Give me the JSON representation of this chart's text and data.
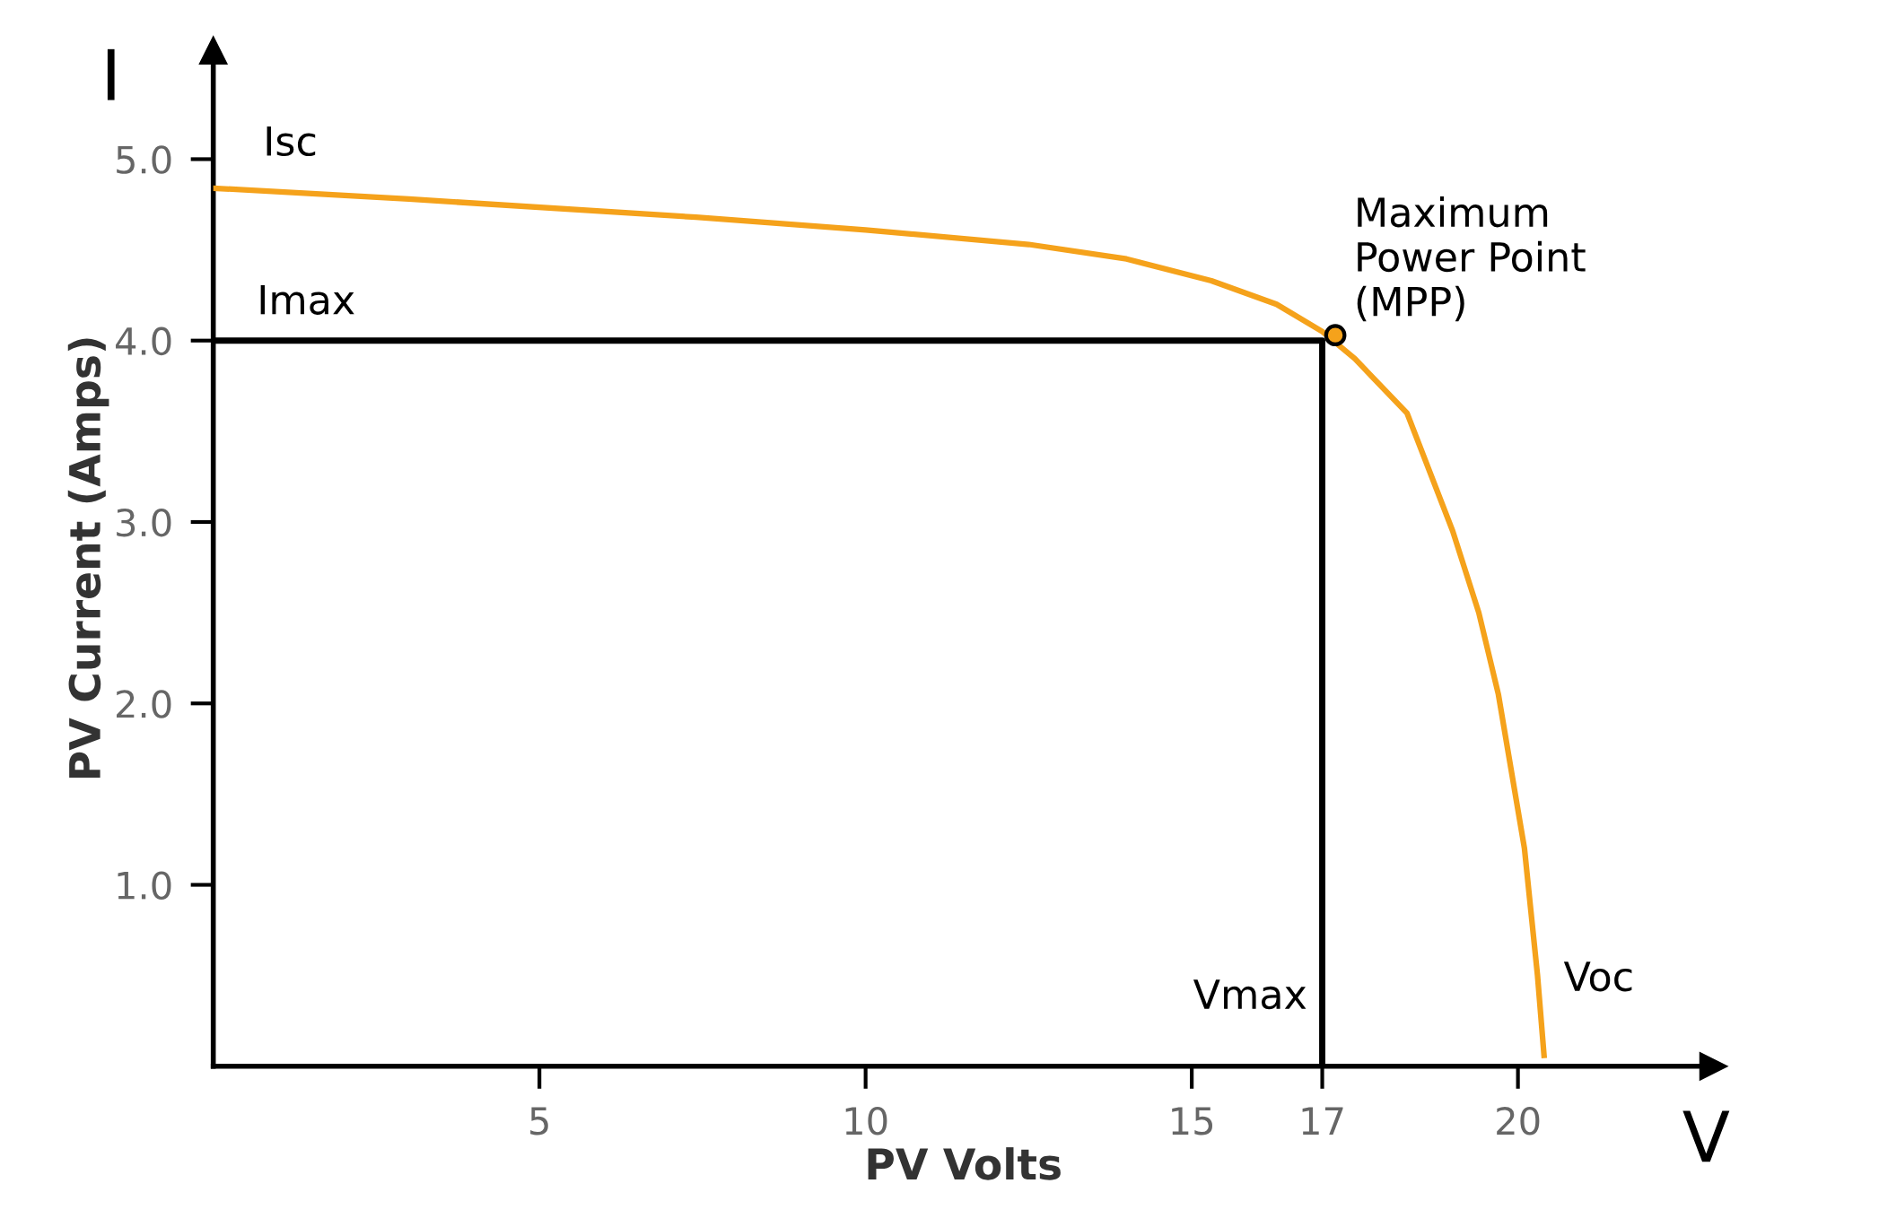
{
  "chart_data": {
    "type": "line",
    "xlabel": "PV Volts",
    "ylabel": "PV Current (Amps)",
    "xlim": [
      0,
      23
    ],
    "ylim": [
      0,
      5.6
    ],
    "xticks": [
      5,
      10,
      15,
      17,
      20
    ],
    "yticks": [
      {
        "value": 1,
        "label": "1.0"
      },
      {
        "value": 2,
        "label": "2.0"
      },
      {
        "value": 3,
        "label": "3.0"
      },
      {
        "value": 4,
        "label": "4.0"
      },
      {
        "value": 5,
        "label": "5.0"
      }
    ],
    "grid": false,
    "legend": false,
    "series": [
      {
        "color": "#f5a21b",
        "x": [
          0,
          3,
          7.4,
          10,
          12.5,
          14,
          15.3,
          16.3,
          17,
          17.5,
          18.3,
          19,
          19.4,
          19.7,
          20.1,
          20.3,
          20.4
        ],
        "values": [
          4.84,
          4.78,
          4.68,
          4.61,
          4.53,
          4.45,
          4.33,
          4.2,
          4.05,
          3.9,
          3.6,
          2.95,
          2.5,
          2.05,
          1.2,
          0.5,
          0.06
        ]
      },
      {
        "color": "#000000",
        "x": [
          0,
          17,
          17
        ],
        "values": [
          4,
          4,
          0
        ]
      },
      {
        "type": "scatter",
        "color": "#f5a21b",
        "marker": "circle",
        "x": [
          17.2
        ],
        "values": [
          4.03
        ]
      }
    ],
    "annotations": [
      "I",
      "V",
      {
        "text": "Isc",
        "x": 0,
        "y": 4.84
      },
      {
        "text": "Imax",
        "x": 0,
        "y": 4
      },
      {
        "text": "Maximum\nPower Point\n(MPP)",
        "x": 17.2,
        "y": 4.03
      },
      {
        "text": "Vmax",
        "x": 17,
        "y": 0
      },
      "Voc"
    ]
  }
}
